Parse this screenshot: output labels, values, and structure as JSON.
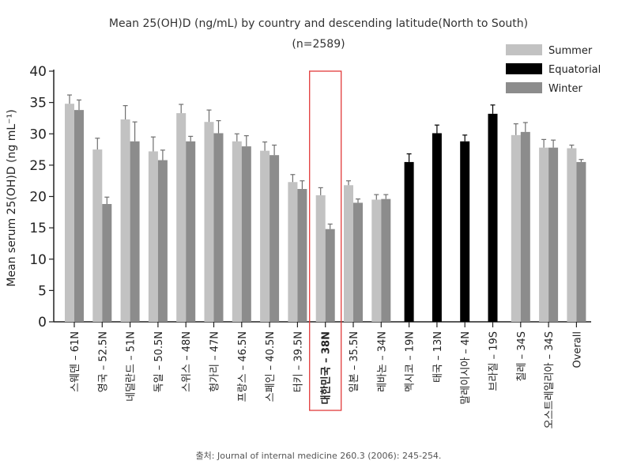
{
  "chart_data": {
    "type": "bar",
    "title": "Mean 25(OH)D (ng/mL) by country and descending latitude(North to South)",
    "subtitle": "(n=2589)",
    "ylabel": "Mean serum 25(OH)D (ng mL⁻¹)",
    "xlabel": "",
    "ylim": [
      0,
      40
    ],
    "yticks": [
      0,
      5,
      10,
      15,
      20,
      25,
      30,
      35,
      40
    ],
    "grid": false,
    "legend_position": "top-right",
    "categories": [
      "스웨덴 – 61N",
      "영국 – 52.5N",
      "네덜란드 – 51N",
      "독일 – 50.5N",
      "스위스 – 48N",
      "헝가리 – 47N",
      "프랑스 – 46.5N",
      "스페인 – 40.5N",
      "터키 – 39.5N",
      "대한민국 – 38N",
      "일본 – 35.5N",
      "레바논 – 34N",
      "멕시코 – 19N",
      "태국 – 13N",
      "말레이시아 – 4N",
      "브라질 – 19S",
      "칠레 – 34S",
      "오스트레일리아 – 34S",
      "Overall"
    ],
    "highlighted_category": "대한민국 – 38N",
    "series": [
      {
        "name": "Summer",
        "color": "#c2c2c2",
        "values": [
          34.8,
          27.5,
          32.3,
          27.2,
          33.3,
          31.9,
          28.8,
          27.3,
          22.3,
          20.2,
          21.8,
          19.5,
          null,
          null,
          null,
          null,
          29.8,
          27.8,
          27.7
        ],
        "errors": [
          1.4,
          1.8,
          2.2,
          2.3,
          1.4,
          1.9,
          1.2,
          1.4,
          1.2,
          1.2,
          0.7,
          0.8,
          null,
          null,
          null,
          null,
          1.8,
          1.3,
          0.5
        ]
      },
      {
        "name": "Equatorial",
        "color": "#000000",
        "values": [
          null,
          null,
          null,
          null,
          null,
          null,
          null,
          null,
          null,
          null,
          null,
          null,
          25.5,
          30.1,
          28.8,
          33.2,
          null,
          null,
          null
        ],
        "errors": [
          null,
          null,
          null,
          null,
          null,
          null,
          null,
          null,
          null,
          null,
          null,
          null,
          1.3,
          1.3,
          1.0,
          1.4,
          null,
          null,
          null
        ]
      },
      {
        "name": "Winter",
        "color": "#8c8c8c",
        "values": [
          33.8,
          18.8,
          28.8,
          25.8,
          28.8,
          30.1,
          28.0,
          26.6,
          21.2,
          14.8,
          19.0,
          19.6,
          null,
          null,
          null,
          null,
          30.3,
          27.8,
          25.5
        ],
        "errors": [
          1.6,
          1.1,
          3.1,
          1.6,
          0.8,
          2.0,
          1.7,
          1.6,
          1.3,
          0.8,
          0.6,
          0.7,
          null,
          null,
          null,
          null,
          1.5,
          1.2,
          0.4
        ]
      }
    ]
  },
  "source_text": "출처: Journal of internal medicine 260.3 (2006): 245-254."
}
